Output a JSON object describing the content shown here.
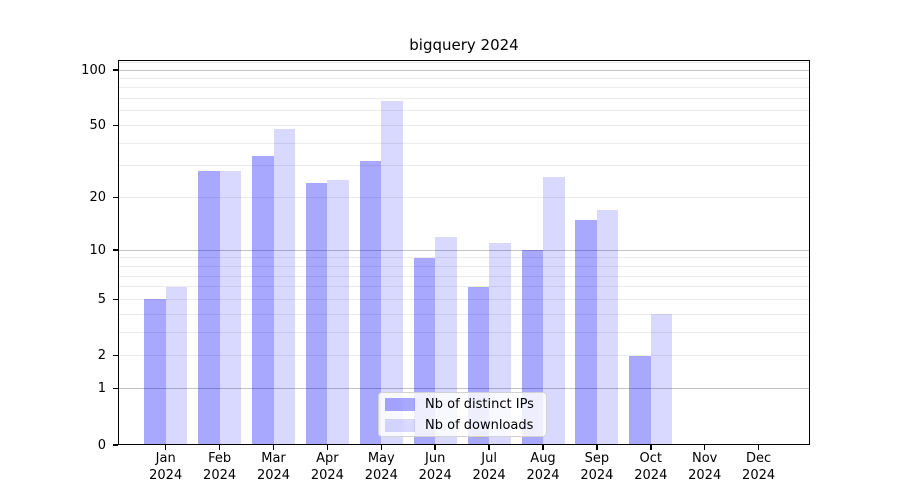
{
  "chart_data": {
    "type": "bar",
    "title": "bigquery 2024",
    "categories": [
      "Jan",
      "Feb",
      "Mar",
      "Apr",
      "May",
      "Jun",
      "Jul",
      "Aug",
      "Sep",
      "Oct",
      "Nov",
      "Dec"
    ],
    "category_year": "2024",
    "series": [
      {
        "name": "Nb of distinct IPs",
        "color": "#0000ff",
        "alpha": 0.34,
        "values": [
          5,
          28,
          34,
          24,
          32,
          9,
          6,
          10,
          15,
          2,
          0,
          0
        ]
      },
      {
        "name": "Nb of downloads",
        "color": "#0000ff",
        "alpha": 0.15,
        "values": [
          6,
          28,
          48,
          25,
          68,
          12,
          11,
          26,
          17,
          4,
          0,
          0
        ]
      }
    ],
    "xlabel": "",
    "ylabel": "",
    "yscale": "log1p",
    "ylim": [
      0,
      113
    ],
    "ytick_values": [
      0,
      1,
      2,
      5,
      10,
      20,
      50,
      100
    ],
    "ytick_labels": [
      "0",
      "1",
      "2",
      "5",
      "10",
      "20",
      "50",
      "100"
    ],
    "grid": "on",
    "grid_major_values": [
      1,
      10,
      100
    ],
    "grid_minor_values": [
      2,
      3,
      4,
      5,
      6,
      7,
      8,
      9,
      20,
      30,
      40,
      50,
      60,
      70,
      80,
      90,
      110
    ],
    "legend_position": "lower center",
    "colors": {
      "grid_major": "#c3c3c3",
      "grid_minor": "#ebebeb",
      "axis": "#000000",
      "background": "#ffffff",
      "bar_distinct_ips_rendered": "#a8a8ff",
      "bar_downloads_rendered": "#d9d9ff"
    }
  }
}
